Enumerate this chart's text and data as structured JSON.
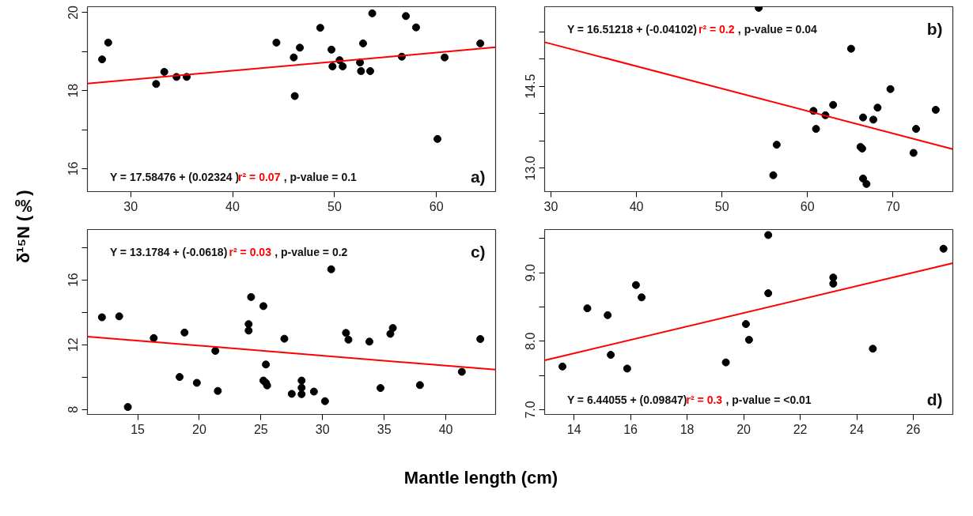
{
  "chart_data": [
    {
      "type": "scatter",
      "ylabel": "δ¹⁵N (‰)",
      "xlim": [
        25.76,
        65.8
      ],
      "ylim": [
        15.41,
        20.15
      ],
      "xticks": [
        30,
        40,
        50,
        60
      ],
      "yticks": [
        16,
        {
          "value": 17,
          "label": null
        },
        18,
        {
          "value": 19,
          "label": null
        },
        20
      ],
      "annotations": [
        "Y = 17.58476 + (0.02324 )",
        "r² = 0.07",
        ", p-value = 0.1",
        "a)"
      ],
      "series": [
        {
          "marker": "circle",
          "color": "#000000",
          "x": [
            27.2,
            27.8,
            32.5,
            33.3,
            34.5,
            35.5,
            44.3,
            46.0,
            46.1,
            46.6,
            48.6,
            49.7,
            49.8,
            50.5,
            50.8,
            52.5,
            52.6,
            52.8,
            53.5,
            53.7,
            56.6,
            57.0,
            58.0,
            60.1,
            60.8,
            64.3
          ],
          "values": [
            18.8,
            19.23,
            18.17,
            18.48,
            18.35,
            18.35,
            19.23,
            18.85,
            17.86,
            19.1,
            19.61,
            19.05,
            18.62,
            18.78,
            18.62,
            18.72,
            18.5,
            19.21,
            18.5,
            19.98,
            18.87,
            19.91,
            19.62,
            16.76,
            18.85,
            19.21
          ]
        },
        {
          "type": "line",
          "color": "#ff0000",
          "x": [
            25.76,
            65.8
          ],
          "values": [
            18.18,
            19.11
          ]
        }
      ]
    },
    {
      "type": "scatter",
      "xlim": [
        29.26,
        77
      ],
      "ylim": [
        12.57,
        15.96
      ],
      "xticks": [
        30,
        40,
        50,
        60,
        70
      ],
      "yticks": [
        {
          "value": 13,
          "label": "13.0"
        },
        {
          "value": 13.5,
          "label": null
        },
        {
          "value": 14,
          "label": null
        },
        14.5,
        {
          "value": 15,
          "label": null
        },
        {
          "value": 15.5,
          "label": null
        }
      ],
      "annotations": [
        "Y = 16.51218 + (-0.04102)",
        "r² = 0.2",
        ", p-value = 0.04",
        "b)"
      ],
      "series": [
        {
          "marker": "circle",
          "color": "#000000",
          "x": [
            54.3,
            65.1,
            69.7,
            63.0,
            68.2,
            75.0,
            60.7,
            62.1,
            66.5,
            67.7,
            61.0,
            72.7,
            56.4,
            66.2,
            66.4,
            72.4,
            56.0,
            66.5,
            66.9
          ],
          "values": [
            15.94,
            15.19,
            14.45,
            14.16,
            14.11,
            14.07,
            14.05,
            13.97,
            13.93,
            13.89,
            13.72,
            13.72,
            13.43,
            13.39,
            13.36,
            13.28,
            12.87,
            12.81,
            12.71
          ]
        },
        {
          "type": "line",
          "color": "#ff0000",
          "x": [
            29.26,
            77
          ],
          "values": [
            15.31,
            13.35
          ]
        }
      ]
    },
    {
      "type": "scatter",
      "xlabel": "Mantle length (cm)",
      "xlim": [
        10.92,
        44.04
      ],
      "ylim": [
        7.7,
        19.1
      ],
      "xticks": [
        15,
        20,
        25,
        30,
        35,
        40
      ],
      "yticks": [
        8,
        {
          "value": 10,
          "label": null
        },
        12,
        {
          "value": 14,
          "label": null
        },
        16,
        {
          "value": 18,
          "label": null
        }
      ],
      "annotations": [
        "Y = 13.1784 + (-0.0618)",
        "r² = 0.03",
        ", p-value = 0.2",
        "c)"
      ],
      "series": [
        {
          "marker": "circle",
          "color": "#000000",
          "x": [
            12.1,
            13.5,
            14.2,
            16.3,
            18.8,
            18.4,
            19.8,
            21.3,
            21.5,
            24.0,
            24.0,
            24.2,
            25.2,
            25.4,
            25.2,
            25.4,
            25.5,
            26.9,
            27.5,
            28.3,
            28.3,
            28.3,
            29.3,
            30.2,
            30.7,
            31.9,
            32.1,
            33.8,
            34.7,
            35.5,
            35.7,
            37.9,
            41.3,
            42.8
          ],
          "values": [
            13.69,
            13.75,
            8.16,
            12.41,
            12.75,
            10.01,
            9.65,
            11.62,
            9.15,
            13.27,
            12.87,
            14.94,
            14.38,
            10.78,
            9.79,
            9.65,
            9.49,
            12.37,
            8.97,
            9.79,
            9.35,
            8.95,
            9.11,
            8.52,
            16.65,
            12.73,
            12.31,
            12.19,
            9.33,
            12.67,
            13.03,
            9.51,
            10.33,
            12.35
          ]
        },
        {
          "type": "line",
          "color": "#ff0000",
          "x": [
            10.92,
            44.04
          ],
          "values": [
            12.5,
            10.46
          ]
        }
      ]
    },
    {
      "type": "scatter",
      "xlim": [
        12.96,
        27.4
      ],
      "ylim": [
        6.93,
        9.63
      ],
      "xticks": [
        14,
        16,
        18,
        20,
        22,
        24,
        26
      ],
      "yticks": [
        {
          "value": 7,
          "label": "7.0"
        },
        {
          "value": 7.5,
          "label": null
        },
        {
          "value": 8,
          "label": "8.0"
        },
        {
          "value": 8.5,
          "label": null
        },
        {
          "value": 9,
          "label": "9.0"
        },
        {
          "value": 9.5,
          "label": null
        }
      ],
      "annotations": [
        "Y = 6.44055 + (0.09847)",
        "r² = 0.3",
        ", p-value = <0.01",
        "d)"
      ],
      "series": [
        {
          "marker": "circle",
          "color": "#000000",
          "x": [
            13.59,
            14.47,
            15.19,
            15.3,
            15.88,
            16.19,
            16.39,
            19.37,
            20.08,
            20.19,
            20.87,
            20.87,
            23.17,
            23.17,
            24.57,
            27.07
          ],
          "values": [
            7.63,
            8.48,
            8.38,
            7.8,
            7.6,
            8.82,
            8.64,
            7.69,
            8.25,
            8.02,
            9.55,
            8.7,
            8.93,
            8.84,
            7.89,
            9.35
          ]
        },
        {
          "type": "line",
          "color": "#ff0000",
          "x": [
            12.96,
            27.4
          ],
          "values": [
            7.72,
            9.14
          ]
        }
      ]
    }
  ]
}
